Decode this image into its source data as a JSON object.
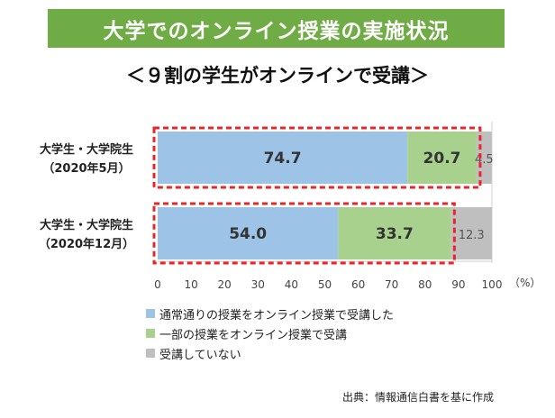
{
  "title": "大学でのオンライン授業の実施状況",
  "subtitle": "＜９割の学生がオンラインで受講＞",
  "source": "出典：情報通信白書を基に作成",
  "chart_data": {
    "type": "bar",
    "orientation": "horizontal",
    "stacked": true,
    "categories": [
      {
        "line1": "大学生・大学院生",
        "line2": "（2020年5月）"
      },
      {
        "line1": "大学生・大学院生",
        "line2": "（2020年12月）"
      }
    ],
    "series": [
      {
        "name": "通常通りの授業をオンライン授業で受講した",
        "color": "#9dc3e6",
        "values": [
          74.7,
          54.0
        ],
        "labels": [
          "74.7",
          "54.0"
        ]
      },
      {
        "name": "一部の授業をオンライン授業で受講",
        "color": "#a9d18e",
        "values": [
          20.7,
          33.7
        ],
        "labels": [
          "20.7",
          "33.7"
        ]
      },
      {
        "name": "受講していない",
        "color": "#bfbfbf",
        "values": [
          4.5,
          12.3
        ],
        "labels": [
          "4.5",
          "12.3"
        ]
      }
    ],
    "xlim": [
      0,
      100
    ],
    "xticks": [
      "0",
      "10",
      "20",
      "30",
      "40",
      "50",
      "60",
      "70",
      "80",
      "90",
      "100"
    ],
    "xunit": "（%）",
    "highlight": "online (series 1 + 2) shown inside red dashed boxes",
    "highlight_color": "#e8262a"
  }
}
